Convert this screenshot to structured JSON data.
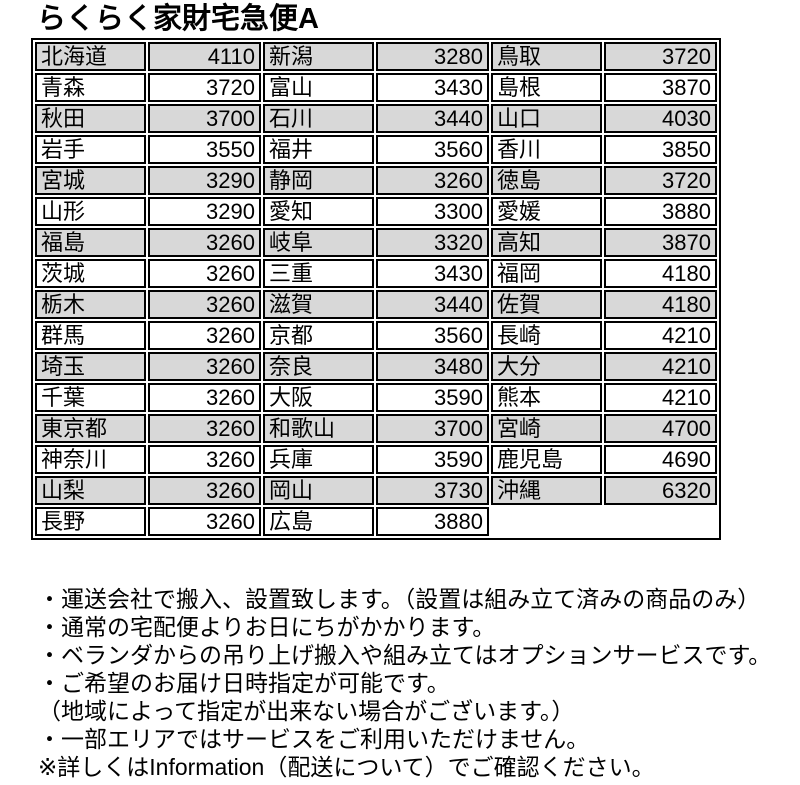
{
  "title": "らくらく家財宅急便A",
  "colors": {
    "row_shade": "#d8d8d8",
    "border": "#000000",
    "text": "#000000",
    "background": "#ffffff"
  },
  "table": {
    "description": "prefecture shipping fee table, 3 column-pairs per row",
    "rows": [
      [
        {
          "pref": "北海道",
          "price": "4110"
        },
        {
          "pref": "新潟",
          "price": "3280"
        },
        {
          "pref": "鳥取",
          "price": "3720"
        }
      ],
      [
        {
          "pref": "青森",
          "price": "3720"
        },
        {
          "pref": "富山",
          "price": "3430"
        },
        {
          "pref": "島根",
          "price": "3870"
        }
      ],
      [
        {
          "pref": "秋田",
          "price": "3700"
        },
        {
          "pref": "石川",
          "price": "3440"
        },
        {
          "pref": "山口",
          "price": "4030"
        }
      ],
      [
        {
          "pref": "岩手",
          "price": "3550"
        },
        {
          "pref": "福井",
          "price": "3560"
        },
        {
          "pref": "香川",
          "price": "3850"
        }
      ],
      [
        {
          "pref": "宮城",
          "price": "3290"
        },
        {
          "pref": "静岡",
          "price": "3260"
        },
        {
          "pref": "徳島",
          "price": "3720"
        }
      ],
      [
        {
          "pref": "山形",
          "price": "3290"
        },
        {
          "pref": "愛知",
          "price": "3300"
        },
        {
          "pref": "愛媛",
          "price": "3880"
        }
      ],
      [
        {
          "pref": "福島",
          "price": "3260"
        },
        {
          "pref": "岐阜",
          "price": "3320"
        },
        {
          "pref": "高知",
          "price": "3870"
        }
      ],
      [
        {
          "pref": "茨城",
          "price": "3260"
        },
        {
          "pref": "三重",
          "price": "3430"
        },
        {
          "pref": "福岡",
          "price": "4180"
        }
      ],
      [
        {
          "pref": "栃木",
          "price": "3260"
        },
        {
          "pref": "滋賀",
          "price": "3440"
        },
        {
          "pref": "佐賀",
          "price": "4180"
        }
      ],
      [
        {
          "pref": "群馬",
          "price": "3260"
        },
        {
          "pref": "京都",
          "price": "3560"
        },
        {
          "pref": "長崎",
          "price": "4210"
        }
      ],
      [
        {
          "pref": "埼玉",
          "price": "3260"
        },
        {
          "pref": "奈良",
          "price": "3480"
        },
        {
          "pref": "大分",
          "price": "4210"
        }
      ],
      [
        {
          "pref": "千葉",
          "price": "3260"
        },
        {
          "pref": "大阪",
          "price": "3590"
        },
        {
          "pref": "熊本",
          "price": "4210"
        }
      ],
      [
        {
          "pref": "東京都",
          "price": "3260"
        },
        {
          "pref": "和歌山",
          "price": "3700"
        },
        {
          "pref": "宮崎",
          "price": "4700"
        }
      ],
      [
        {
          "pref": "神奈川",
          "price": "3260"
        },
        {
          "pref": "兵庫",
          "price": "3590"
        },
        {
          "pref": "鹿児島",
          "price": "4690"
        }
      ],
      [
        {
          "pref": "山梨",
          "price": "3260"
        },
        {
          "pref": "岡山",
          "price": "3730"
        },
        {
          "pref": "沖縄",
          "price": "6320"
        }
      ],
      [
        {
          "pref": "長野",
          "price": "3260"
        },
        {
          "pref": "広島",
          "price": "3880"
        },
        null
      ]
    ]
  },
  "notes": [
    "・運送会社で搬入、設置致します。（設置は組み立て済みの商品のみ）",
    "・通常の宅配便よりお日にちがかかります。",
    "・ベランダからの吊り上げ搬入や組み立てはオプションサービスです。",
    "・ご希望のお届け日時指定が可能です。",
    "（地域によって指定が出来ない場合がございます。）",
    "・一部エリアではサービスをご利用いただけません。",
    "※詳しくはInformation（配送について）でご確認ください。"
  ]
}
